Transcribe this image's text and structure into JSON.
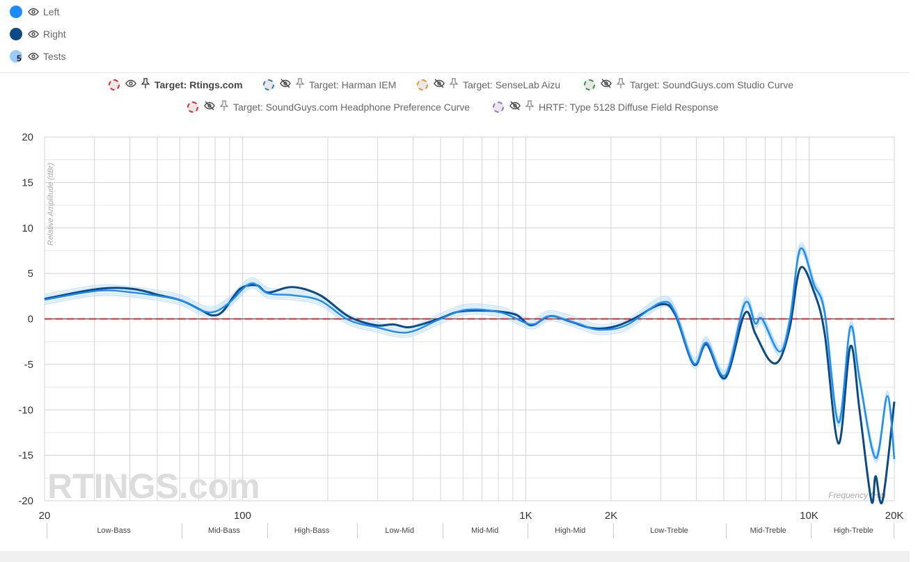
{
  "legend": [
    {
      "label": "Left",
      "color": "#1a8cff",
      "icon": "eye-icon"
    },
    {
      "label": "Right",
      "color": "#0a4a86",
      "icon": "eye-icon"
    },
    {
      "label": "Tests",
      "color": "#99cbff",
      "count": "5",
      "icon": "eye-icon"
    }
  ],
  "targets": [
    {
      "label": "Target: Rtings.com",
      "color": "#e02424",
      "visible": true,
      "pinned": true
    },
    {
      "label": "Target: Harman IEM",
      "color": "#2a7ab8",
      "visible": false
    },
    {
      "label": "Target: SenseLab Aizu",
      "color": "#f08a24",
      "visible": false
    },
    {
      "label": "Target: SoundGuys.com Studio Curve",
      "color": "#2a9a3a",
      "visible": false
    },
    {
      "label": "Target: SoundGuys.com Headphone Preference Curve",
      "color": "#e02424",
      "visible": false
    },
    {
      "label": "HRTF: Type 5128 Diffuse Field Response",
      "color": "#9a6ad0",
      "visible": false
    }
  ],
  "chart_data": {
    "type": "line",
    "ylabel": "Relative Amplitude (dBr)",
    "xlabel": "Frequency (Hz)",
    "xscale": "log",
    "xlim": [
      20,
      20000
    ],
    "ylim": [
      -20,
      20
    ],
    "yticks": [
      20,
      15,
      10,
      5,
      0,
      -5,
      -10,
      -15,
      -20
    ],
    "xticks": [
      {
        "v": 20,
        "l": "20"
      },
      {
        "v": 100,
        "l": "100"
      },
      {
        "v": 1000,
        "l": "1K"
      },
      {
        "v": 2000,
        "l": "2K"
      },
      {
        "v": 10000,
        "l": "10K"
      },
      {
        "v": 20000,
        "l": "20K"
      }
    ],
    "grid": true,
    "watermark": "RTINGS.com",
    "target_line": {
      "name": "Target: Rtings.com",
      "value": 0,
      "color": "#e02424"
    },
    "series": [
      {
        "name": "Right",
        "color": "#0a4a86",
        "x": [
          20,
          31,
          41,
          51,
          61,
          72,
          78,
          85,
          98,
          112,
          123,
          150,
          188,
          236,
          295,
          340,
          392,
          492,
          582,
          731,
          916,
          1044,
          1216,
          1440,
          1706,
          2023,
          2398,
          3006,
          3366,
          3920,
          4346,
          5058,
          5930,
          6455,
          7229,
          7870,
          8556,
          9318,
          10425,
          11353,
          12707,
          13995,
          15070,
          16594,
          17180,
          18170,
          20000
        ],
        "y": [
          2.2,
          3.3,
          3.3,
          2.6,
          2.0,
          0.9,
          0.4,
          0.8,
          3.3,
          3.7,
          2.9,
          3.5,
          2.6,
          0.3,
          -0.7,
          -0.6,
          -0.9,
          0,
          0.8,
          0.9,
          0.5,
          -0.7,
          0.3,
          -0.3,
          -1.0,
          -0.9,
          0,
          1.6,
          0.5,
          -5,
          -2.8,
          -6.5,
          0.6,
          -1.6,
          -4.5,
          -4.5,
          -0.9,
          5.6,
          2.9,
          -1.6,
          -13.7,
          -3,
          -10,
          -20,
          -17.3,
          -20,
          -9.1
        ]
      },
      {
        "name": "Left",
        "color": "#1a8cff",
        "x": [
          20,
          31,
          41,
          51,
          61,
          72,
          80,
          90,
          107,
          123,
          150,
          188,
          236,
          295,
          381,
          492,
          617,
          818,
          1044,
          1216,
          1525,
          1806,
          2265,
          3006,
          3366,
          3920,
          4346,
          5058,
          5930,
          6455,
          6827,
          7870,
          8556,
          9318,
          10425,
          11353,
          12707,
          13995,
          15070,
          17180,
          18900,
          20000
        ],
        "y": [
          2.1,
          3.1,
          2.9,
          2.5,
          2.0,
          0.9,
          0.8,
          1.8,
          3.9,
          2.8,
          2.6,
          2.0,
          -0.1,
          -0.9,
          -1.5,
          -0.1,
          1.0,
          0.7,
          -0.6,
          0.3,
          -0.5,
          -1.2,
          -0.7,
          1.8,
          0.7,
          -4.9,
          -2.6,
          -6.2,
          1.7,
          -0.5,
          0,
          -3.6,
          -0.1,
          7.7,
          3.7,
          0.7,
          -11.4,
          -0.9,
          -6.6,
          -15.3,
          -8.5,
          -15.4
        ]
      }
    ],
    "tests": {
      "name": "Tests",
      "count": 5,
      "based_on": "Left",
      "offsets_db": [
        0.4,
        -0.3,
        0.6,
        -0.5,
        0.2
      ],
      "color": "#b8dcff"
    },
    "bands": [
      {
        "label": "Low-Bass",
        "from": 20,
        "to": 60
      },
      {
        "label": "Mid-Bass",
        "from": 60,
        "to": 120
      },
      {
        "label": "High-Bass",
        "from": 120,
        "to": 250
      },
      {
        "label": "Low-Mid",
        "from": 250,
        "to": 500
      },
      {
        "label": "Mid-Mid",
        "from": 500,
        "to": 1000
      },
      {
        "label": "High-Mid",
        "from": 1000,
        "to": 2000
      },
      {
        "label": "Low-Treble",
        "from": 2000,
        "to": 5000
      },
      {
        "label": "Mid-Treble",
        "from": 5000,
        "to": 10000
      },
      {
        "label": "High-Treble",
        "from": 10000,
        "to": 20000
      }
    ]
  }
}
